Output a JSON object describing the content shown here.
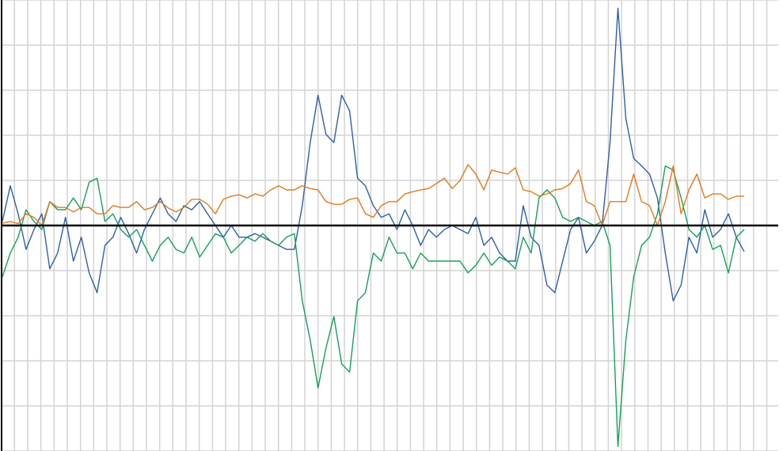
{
  "chart_data": {
    "type": "line",
    "title": "",
    "xlabel": "",
    "ylabel": "",
    "ylim": [
      -5,
      5
    ],
    "grid": true,
    "legend": "none",
    "zero_line": true,
    "series": [
      {
        "color": "#2f5fa7",
        "values": [
          0.09,
          0.88,
          0.26,
          -0.53,
          -0.09,
          0.26,
          -0.96,
          -0.61,
          0.18,
          -0.79,
          -0.26,
          -1.05,
          -1.49,
          -0.44,
          -0.26,
          0.18,
          -0.18,
          -0.61,
          -0.09,
          0.26,
          0.61,
          0.26,
          0.09,
          0.44,
          0.35,
          0.53,
          0.26,
          0,
          -0.26,
          0,
          -0.26,
          -0.26,
          -0.18,
          -0.26,
          -0.35,
          -0.44,
          -0.53,
          -0.53,
          0.44,
          1.84,
          2.89,
          2.02,
          1.84,
          2.89,
          2.54,
          1.05,
          0.88,
          0.44,
          0.18,
          0.26,
          -0.09,
          0.35,
          0,
          -0.44,
          -0.09,
          -0.26,
          -0.09,
          0,
          -0.09,
          -0.18,
          0.18,
          -0.44,
          -0.26,
          -0.61,
          -0.79,
          -0.79,
          0.44,
          -0.26,
          -0.44,
          -1.32,
          -1.49,
          -0.79,
          -0.09,
          0.18,
          -0.61,
          -0.35,
          0,
          1.84,
          4.82,
          2.37,
          1.49,
          1.32,
          1.14,
          0.61,
          -0.61,
          -1.67,
          -1.32,
          -0.26,
          -0.61,
          0.35,
          -0.26,
          -0.09,
          0.26,
          -0.26,
          -0.58
        ]
      },
      {
        "color": "#16a05a",
        "values": [
          -1.14,
          -0.61,
          -0.26,
          0.35,
          0.09,
          -0.09,
          0.53,
          0.35,
          0.35,
          0.61,
          0.35,
          0.96,
          1.05,
          0.09,
          0.26,
          -0.09,
          -0.26,
          -0.09,
          -0.44,
          -0.79,
          -0.44,
          -0.26,
          -0.53,
          -0.61,
          -0.26,
          -0.7,
          -0.44,
          -0.18,
          -0.26,
          -0.61,
          -0.44,
          -0.26,
          -0.35,
          -0.18,
          -0.35,
          -0.44,
          -0.26,
          -0.18,
          -1.67,
          -2.54,
          -3.6,
          -2.72,
          -2.02,
          -3.07,
          -3.25,
          -1.67,
          -1.49,
          -0.61,
          -0.79,
          -0.26,
          -0.61,
          -0.61,
          -0.96,
          -0.61,
          -0.79,
          -0.79,
          -0.79,
          -0.79,
          -0.79,
          -1.05,
          -0.88,
          -0.61,
          -0.88,
          -0.7,
          -0.79,
          -0.96,
          -0.26,
          -0.61,
          0.61,
          0.79,
          0.61,
          0.18,
          0.09,
          0.18,
          0.09,
          0,
          0.09,
          -0.44,
          -4.9,
          -2.54,
          -1.14,
          -0.44,
          -0.26,
          0.26,
          1.32,
          1.23,
          0.61,
          -0.09,
          -0.26,
          0,
          -0.53,
          -0.44,
          -1.05,
          -0.26,
          -0.09
        ]
      },
      {
        "color": "#e07b1f",
        "values": [
          0.05,
          0.09,
          0.04,
          0.26,
          0.18,
          0,
          0.53,
          0.4,
          0.4,
          0.3,
          0.4,
          0.4,
          0.26,
          0.26,
          0.44,
          0.4,
          0.4,
          0.53,
          0.35,
          0.4,
          0.53,
          0.39,
          0.3,
          0.4,
          0.58,
          0.58,
          0.47,
          0.26,
          0.58,
          0.65,
          0.68,
          0.61,
          0.7,
          0.65,
          0.79,
          0.88,
          0.79,
          0.79,
          0.88,
          0.82,
          0.79,
          0.53,
          0.47,
          0.47,
          0.58,
          0.61,
          0.26,
          0.18,
          0.44,
          0.53,
          0.53,
          0.7,
          0.75,
          0.79,
          0.82,
          0.93,
          1.05,
          0.82,
          1.0,
          1.35,
          1.14,
          0.79,
          1.23,
          1.18,
          1.14,
          1.28,
          0.79,
          0.75,
          0.65,
          0.7,
          0.79,
          0.82,
          0.93,
          1.23,
          0.53,
          0.44,
          0,
          0.53,
          0.53,
          0.53,
          1.14,
          0.53,
          0.44,
          0,
          0.53,
          1.32,
          0.26,
          0.79,
          1.14,
          0.61,
          0.7,
          0.7,
          0.58,
          0.65,
          0.65
        ]
      }
    ],
    "colors": {
      "grid": "#d3d3d3",
      "axis": "#000000"
    }
  }
}
